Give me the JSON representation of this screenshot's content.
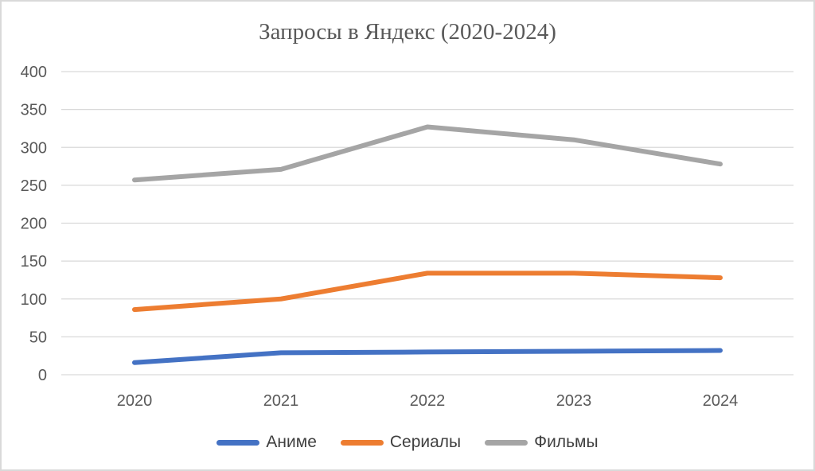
{
  "chart_data": {
    "type": "line",
    "title": "Запросы в Яндекс (2020-2024)",
    "categories": [
      "2020",
      "2021",
      "2022",
      "2023",
      "2024"
    ],
    "series": [
      {
        "name": "Аниме",
        "slug": "anime",
        "color": "#4472C4",
        "values": [
          16,
          29,
          30,
          31,
          32
        ]
      },
      {
        "name": "Сериалы",
        "slug": "serialy",
        "color": "#ED7D31",
        "values": [
          86,
          100,
          134,
          134,
          128
        ]
      },
      {
        "name": "Фильмы",
        "slug": "filmy",
        "color": "#A5A5A5",
        "values": [
          257,
          271,
          327,
          310,
          278
        ]
      }
    ],
    "y_ticks": [
      0,
      50,
      100,
      150,
      200,
      250,
      300,
      350,
      400
    ],
    "ylim": [
      0,
      400
    ],
    "xlabel": "",
    "ylabel": "",
    "grid": true,
    "legend_position": "bottom",
    "line_width": 6,
    "colors": {
      "gridline": "#d9d9d9",
      "tick_label": "#595959",
      "title": "#595959",
      "legend_text": "#404040",
      "background": "#ffffff",
      "border": "#d9d9d9"
    }
  }
}
